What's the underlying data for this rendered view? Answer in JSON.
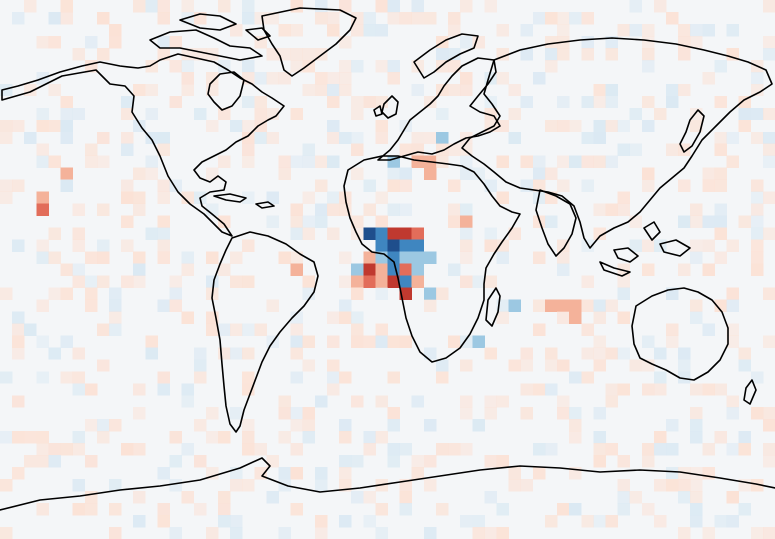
{
  "map": {
    "projection": "equirectangular",
    "grid": {
      "cols": 64,
      "rows": 45,
      "seed": 7
    },
    "colors": {
      "background": "#f4f6f8",
      "negative_strong": "#1f4e8c",
      "negative": "#3f86c0",
      "negative_light": "#9cc8e2",
      "negative_faint": "#dbe9f3",
      "positive_faint": "#fbe2d6",
      "positive_light": "#f4b29a",
      "positive": "#e26d5a",
      "positive_strong": "#c0392f",
      "coastline": "#000000"
    },
    "anomaly_cells": [
      {
        "col": 30,
        "row": 19,
        "level": -3
      },
      {
        "col": 31,
        "row": 19,
        "level": -2
      },
      {
        "col": 32,
        "row": 19,
        "level": 3
      },
      {
        "col": 33,
        "row": 19,
        "level": 3
      },
      {
        "col": 34,
        "row": 19,
        "level": 2
      },
      {
        "col": 31,
        "row": 20,
        "level": -2
      },
      {
        "col": 32,
        "row": 20,
        "level": -3
      },
      {
        "col": 33,
        "row": 20,
        "level": -2
      },
      {
        "col": 34,
        "row": 20,
        "level": -2
      },
      {
        "col": 30,
        "row": 21,
        "level": 1
      },
      {
        "col": 31,
        "row": 21,
        "level": -1
      },
      {
        "col": 32,
        "row": 21,
        "level": -2
      },
      {
        "col": 33,
        "row": 21,
        "level": -1
      },
      {
        "col": 34,
        "row": 21,
        "level": -1
      },
      {
        "col": 35,
        "row": 21,
        "level": -1
      },
      {
        "col": 29,
        "row": 22,
        "level": -1
      },
      {
        "col": 30,
        "row": 22,
        "level": 3
      },
      {
        "col": 31,
        "row": 22,
        "level": 1
      },
      {
        "col": 32,
        "row": 22,
        "level": -2
      },
      {
        "col": 33,
        "row": 22,
        "level": 2
      },
      {
        "col": 34,
        "row": 22,
        "level": -1
      },
      {
        "col": 29,
        "row": 23,
        "level": 1
      },
      {
        "col": 30,
        "row": 23,
        "level": 2
      },
      {
        "col": 31,
        "row": 23,
        "level": 1
      },
      {
        "col": 32,
        "row": 23,
        "level": 3
      },
      {
        "col": 33,
        "row": 23,
        "level": -2
      },
      {
        "col": 34,
        "row": 23,
        "level": 1
      },
      {
        "col": 33,
        "row": 24,
        "level": 3
      },
      {
        "col": 35,
        "row": 24,
        "level": -1
      },
      {
        "col": 32,
        "row": 13,
        "level": -1
      },
      {
        "col": 34,
        "row": 13,
        "level": 1
      },
      {
        "col": 35,
        "row": 13,
        "level": 1
      },
      {
        "col": 36,
        "row": 11,
        "level": -1
      },
      {
        "col": 38,
        "row": 18,
        "level": 1
      },
      {
        "col": 3,
        "row": 16,
        "level": 1
      },
      {
        "col": 3,
        "row": 17,
        "level": 2
      },
      {
        "col": 5,
        "row": 14,
        "level": 1
      },
      {
        "col": 45,
        "row": 25,
        "level": 1
      },
      {
        "col": 46,
        "row": 25,
        "level": 1
      },
      {
        "col": 47,
        "row": 25,
        "level": 1
      },
      {
        "col": 47,
        "row": 26,
        "level": 1
      },
      {
        "col": 42,
        "row": 25,
        "level": -1
      },
      {
        "col": 39,
        "row": 28,
        "level": -1
      },
      {
        "col": 24,
        "row": 22,
        "level": 1
      },
      {
        "col": 35,
        "row": 14,
        "level": 1
      }
    ]
  }
}
